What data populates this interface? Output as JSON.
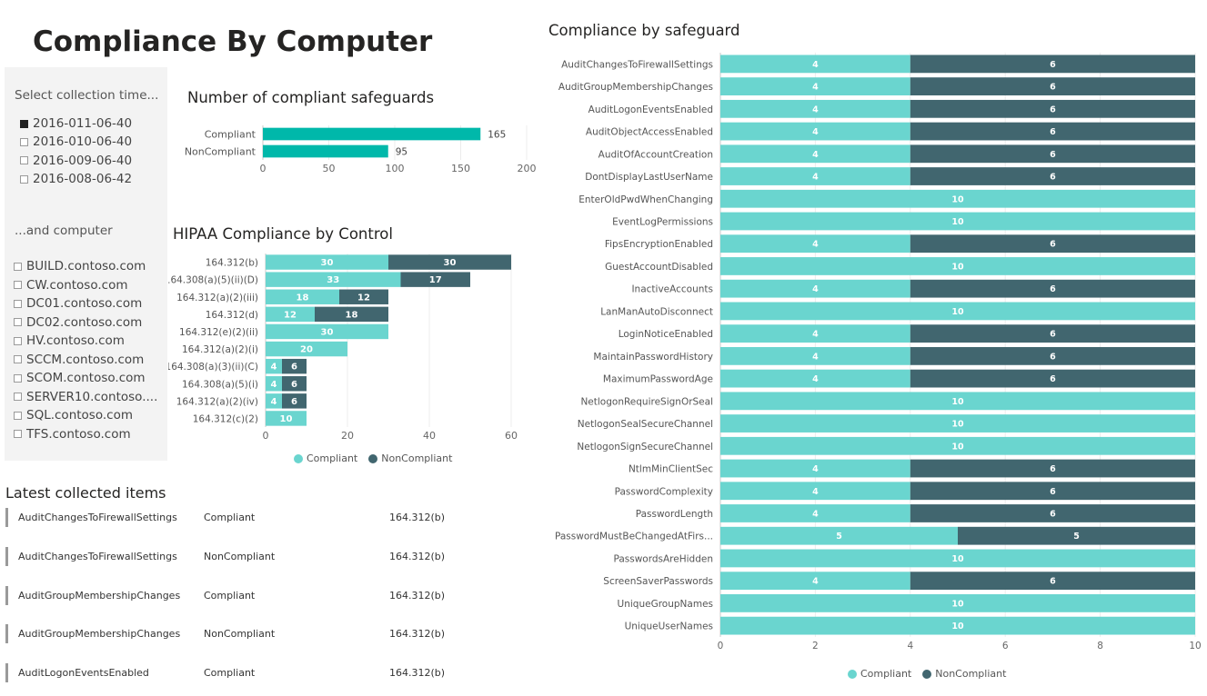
{
  "page": {
    "title": "Compliance By Computer"
  },
  "colors": {
    "compliant": "#6ad5cf",
    "noncompliant": "#41666f",
    "bar_single": "#00b8aa"
  },
  "filters": {
    "collection_time": {
      "header": "Select collection time...",
      "items": [
        {
          "label": "2016-011-06-40",
          "selected": true
        },
        {
          "label": "2016-010-06-40",
          "selected": false
        },
        {
          "label": "2016-009-06-40",
          "selected": false
        },
        {
          "label": "2016-008-06-42",
          "selected": false
        }
      ]
    },
    "computer": {
      "header": "...and computer",
      "items": [
        {
          "label": "BUILD.contoso.com",
          "selected": false
        },
        {
          "label": "CW.contoso.com",
          "selected": false
        },
        {
          "label": "DC01.contoso.com",
          "selected": false
        },
        {
          "label": "DC02.contoso.com",
          "selected": false
        },
        {
          "label": "HV.contoso.com",
          "selected": false
        },
        {
          "label": "SCCM.contoso.com",
          "selected": false
        },
        {
          "label": "SCOM.contoso.com",
          "selected": false
        },
        {
          "label": "SERVER10.contoso....",
          "selected": false
        },
        {
          "label": "SQL.contoso.com",
          "selected": false
        },
        {
          "label": "TFS.contoso.com",
          "selected": false
        }
      ]
    }
  },
  "legend": {
    "compliant": "Compliant",
    "noncompliant": "NonCompliant"
  },
  "chart_data": [
    {
      "id": "safeguards-count",
      "type": "bar",
      "orientation": "horizontal",
      "title": "Number of compliant safeguards",
      "categories": [
        "Compliant",
        "NonCompliant"
      ],
      "values": [
        165,
        95
      ],
      "xlim": [
        0,
        200
      ],
      "xticks": [
        0,
        50,
        100,
        150,
        200
      ],
      "grid": true
    },
    {
      "id": "hipaa-control",
      "type": "bar",
      "orientation": "horizontal",
      "stacked": true,
      "title": "HIPAA Compliance by Control",
      "categories": [
        "164.312(b)",
        "164.308(a)(5)(ii)(D)",
        "164.312(a)(2)(iii)",
        "164.312(d)",
        "164.312(e)(2)(ii)",
        "164.312(a)(2)(i)",
        "164.308(a)(3)(ii)(C)",
        "164.308(a)(5)(i)",
        "164.312(a)(2)(iv)",
        "164.312(c)(2)"
      ],
      "series": [
        {
          "name": "Compliant",
          "values": [
            30,
            33,
            18,
            12,
            30,
            20,
            4,
            4,
            4,
            10
          ]
        },
        {
          "name": "NonCompliant",
          "values": [
            30,
            17,
            12,
            18,
            0,
            0,
            6,
            6,
            6,
            0
          ]
        }
      ],
      "xlim": [
        0,
        60
      ],
      "xticks": [
        0,
        20,
        40,
        60
      ],
      "legend": "bottom",
      "grid": true
    },
    {
      "id": "safeguard",
      "type": "bar",
      "orientation": "horizontal",
      "stacked": true,
      "title": "Compliance by safeguard",
      "categories": [
        "AuditChangesToFirewallSettings",
        "AuditGroupMembershipChanges",
        "AuditLogonEventsEnabled",
        "AuditObjectAccessEnabled",
        "AuditOfAccountCreation",
        "DontDisplayLastUserName",
        "EnterOldPwdWhenChanging",
        "EventLogPermissions",
        "FipsEncryptionEnabled",
        "GuestAccountDisabled",
        "InactiveAccounts",
        "LanManAutoDisconnect",
        "LoginNoticeEnabled",
        "MaintainPasswordHistory",
        "MaximumPasswordAge",
        "NetlogonRequireSignOrSeal",
        "NetlogonSealSecureChannel",
        "NetlogonSignSecureChannel",
        "NtlmMinClientSec",
        "PasswordComplexity",
        "PasswordLength",
        "PasswordMustBeChangedAtFirs...",
        "PasswordsAreHidden",
        "ScreenSaverPasswords",
        "UniqueGroupNames",
        "UniqueUserNames"
      ],
      "series": [
        {
          "name": "Compliant",
          "values": [
            4,
            4,
            4,
            4,
            4,
            4,
            10,
            10,
            4,
            10,
            4,
            10,
            4,
            4,
            4,
            10,
            10,
            10,
            4,
            4,
            4,
            5,
            10,
            4,
            10,
            10
          ]
        },
        {
          "name": "NonCompliant",
          "values": [
            6,
            6,
            6,
            6,
            6,
            6,
            0,
            0,
            6,
            0,
            6,
            0,
            6,
            6,
            6,
            0,
            0,
            0,
            6,
            6,
            6,
            5,
            0,
            6,
            0,
            0
          ]
        }
      ],
      "xlim": [
        0,
        10
      ],
      "xticks": [
        0,
        2,
        4,
        6,
        8,
        10
      ],
      "legend": "bottom",
      "grid": true
    }
  ],
  "latest": {
    "title": "Latest collected items",
    "rows": [
      {
        "name": "AuditChangesToFirewallSettings",
        "status": "Compliant",
        "control": "164.312(b)"
      },
      {
        "name": "AuditChangesToFirewallSettings",
        "status": "NonCompliant",
        "control": "164.312(b)"
      },
      {
        "name": "AuditGroupMembershipChanges",
        "status": "Compliant",
        "control": "164.312(b)"
      },
      {
        "name": "AuditGroupMembershipChanges",
        "status": "NonCompliant",
        "control": "164.312(b)"
      },
      {
        "name": "AuditLogonEventsEnabled",
        "status": "Compliant",
        "control": "164.312(b)"
      }
    ]
  }
}
